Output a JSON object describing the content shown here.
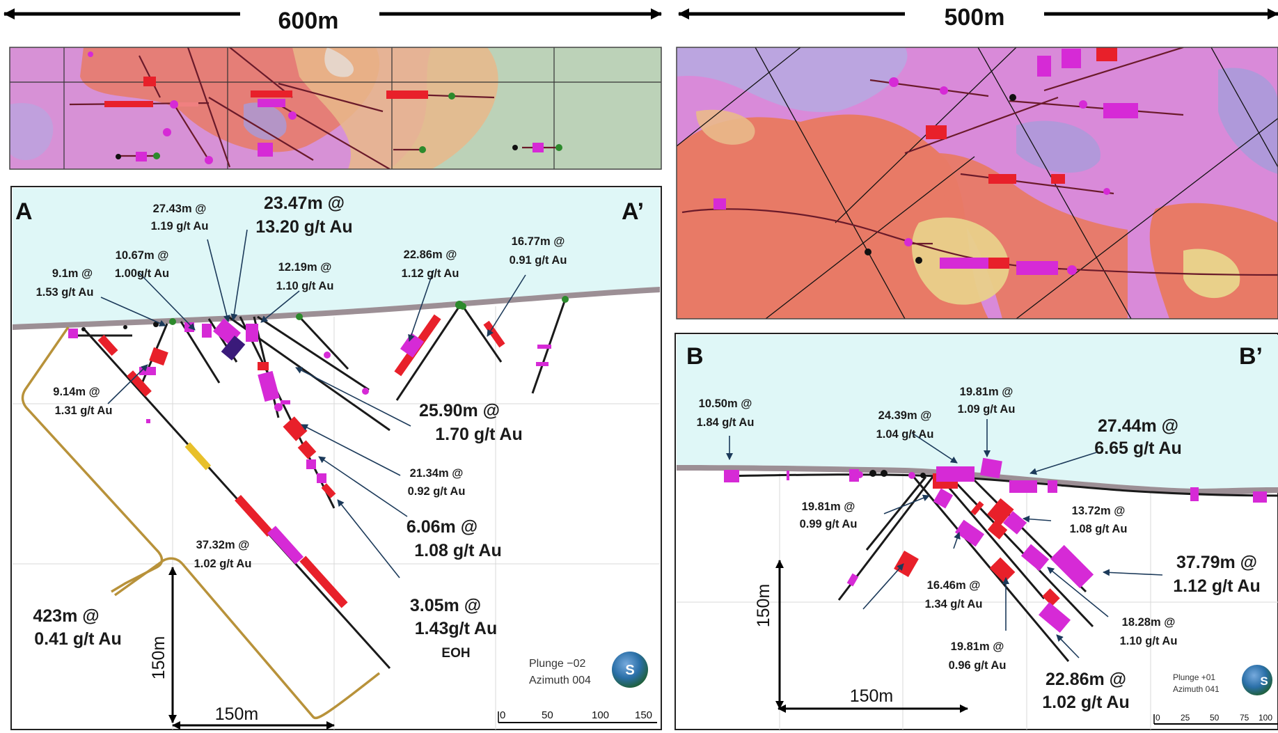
{
  "header": {
    "left_width": "600m",
    "right_width": "500m"
  },
  "sectionA": {
    "start": "A",
    "end": "A’",
    "plunge": "Plunge −02",
    "azimuth": "Azimuth 004",
    "compass": "S",
    "scale_vertical": "150m",
    "scale_horizontal": "150m",
    "scalebar_ticks": [
      "0",
      "50",
      "100",
      "150"
    ],
    "intercepts": [
      {
        "l1": "27.43m @",
        "l2": "1.19 g/t Au"
      },
      {
        "l1": "23.47m @",
        "l2": "13.20 g/t Au"
      },
      {
        "l1": "10.67m @",
        "l2": "1.00g/t Au"
      },
      {
        "l1": "9.1m @",
        "l2": "1.53 g/t Au"
      },
      {
        "l1": "12.19m @",
        "l2": "1.10 g/t Au"
      },
      {
        "l1": "22.86m @",
        "l2": "1.12 g/t Au"
      },
      {
        "l1": "16.77m @",
        "l2": "0.91 g/t Au"
      },
      {
        "l1": "9.14m @",
        "l2": "1.31 g/t Au"
      },
      {
        "l1": "25.90m @",
        "l2": "1.70 g/t Au"
      },
      {
        "l1": "21.34m @",
        "l2": "0.92 g/t Au"
      },
      {
        "l1": "6.06m @",
        "l2": "1.08 g/t Au"
      },
      {
        "l1": "37.32m @",
        "l2": "1.02 g/t Au"
      },
      {
        "l1": "3.05m @",
        "l2": "1.43g/t Au",
        "l3": "EOH"
      },
      {
        "l1": "423m @",
        "l2": "0.41 g/t Au"
      }
    ]
  },
  "sectionB": {
    "start": "B",
    "end": "B’",
    "plunge": "Plunge +01",
    "azimuth": "Azimuth 041",
    "compass": "S",
    "scale_vertical": "150m",
    "scale_horizontal": "150m",
    "scalebar_ticks": [
      "0",
      "25",
      "50",
      "75",
      "100"
    ],
    "intercepts": [
      {
        "l1": "10.50m @",
        "l2": "1.84 g/t Au"
      },
      {
        "l1": "19.81m @",
        "l2": "1.09 g/t Au"
      },
      {
        "l1": "24.39m @",
        "l2": "1.04 g/t Au"
      },
      {
        "l1": "27.44m @",
        "l2": "6.65 g/t Au"
      },
      {
        "l1": "19.81m @",
        "l2": "0.99 g/t Au"
      },
      {
        "l1": "13.72m @",
        "l2": "1.08 g/t Au"
      },
      {
        "l1": "37.79m @",
        "l2": "1.12 g/t Au"
      },
      {
        "l1": "16.46m @",
        "l2": "1.34 g/t Au"
      },
      {
        "l1": "18.28m @",
        "l2": "1.10 g/t Au"
      },
      {
        "l1": "19.81m @",
        "l2": "0.96 g/t Au"
      },
      {
        "l1": "22.86m @",
        "l2": "1.02 g/t Au"
      }
    ]
  },
  "colors": {
    "sky": "#dff7f7",
    "anomaly_red": "#e87a66",
    "anomaly_orange": "#e9b98a",
    "anomaly_magenta": "#d98ad9",
    "anomaly_blue": "#a79bd9",
    "map_green": "#b9cfb5",
    "drill_red": "#e8202a",
    "drill_magenta": "#d62ad6",
    "arrow": "#1c3a5a",
    "outline_gold": "#b8923a"
  }
}
